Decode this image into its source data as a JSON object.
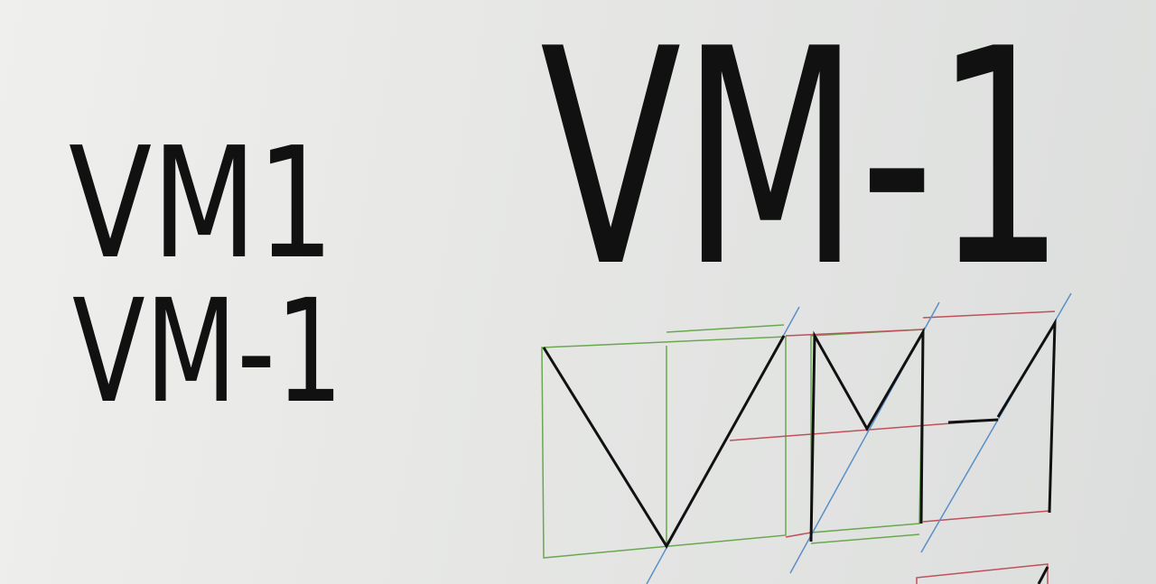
{
  "texts": {
    "small_first": "VM1",
    "small_second": "VM-1",
    "large": "VM-1"
  }
}
